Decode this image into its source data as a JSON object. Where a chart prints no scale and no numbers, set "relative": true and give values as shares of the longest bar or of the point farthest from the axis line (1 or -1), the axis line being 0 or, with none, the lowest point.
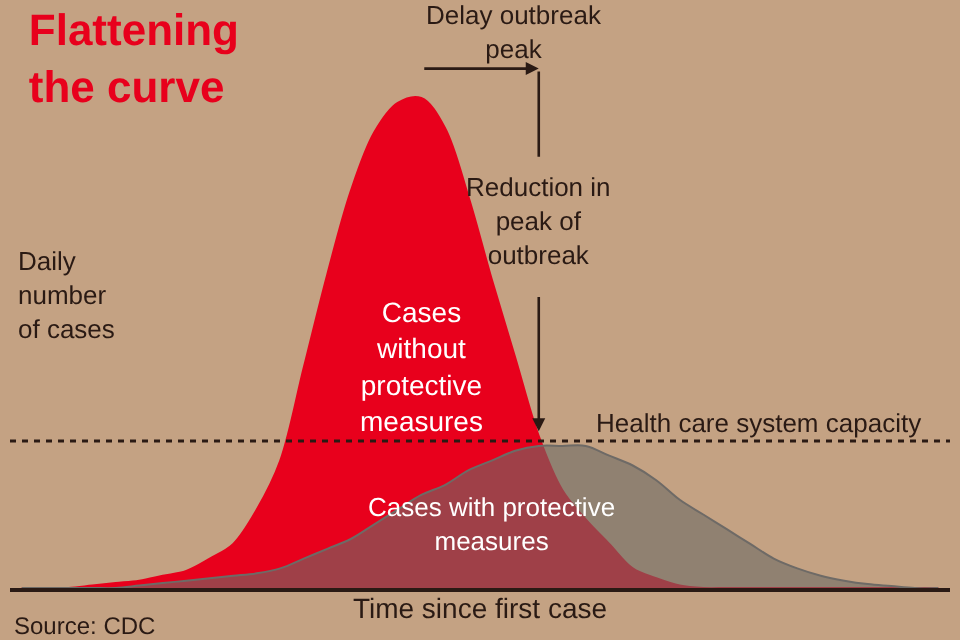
{
  "chart_data": {
    "type": "area",
    "title": "Flattening the curve",
    "xlabel": "Time since first case",
    "ylabel": "Daily number of cases",
    "relative": true,
    "legend": false,
    "categories": [
      null,
      null,
      null,
      null,
      null,
      null,
      null,
      null,
      null,
      null,
      null,
      null,
      null,
      null,
      null,
      null,
      null,
      null,
      null,
      null,
      null,
      null,
      null,
      null,
      null,
      null,
      null,
      null,
      null,
      null,
      null,
      null,
      null,
      null,
      null,
      null,
      null,
      null,
      null,
      null
    ],
    "series": [
      {
        "name": "Cases without protective measures",
        "color": "#e8001c",
        "values": [
          0,
          0,
          0,
          0.005,
          0.01,
          0.015,
          0.025,
          0.035,
          0.06,
          0.09,
          0.16,
          0.26,
          0.45,
          0.64,
          0.81,
          0.93,
          0.99,
          1,
          0.94,
          0.8,
          0.63,
          0.47,
          0.31,
          0.2,
          0.14,
          0.09,
          0.04,
          0.02,
          0.005,
          0,
          0,
          0,
          0,
          0,
          0,
          0,
          0,
          0,
          0,
          0
        ]
      },
      {
        "name": "Cases with protective measures",
        "color": "#6e6a66",
        "values": [
          0,
          0,
          0,
          0,
          0,
          0.005,
          0.01,
          0.015,
          0.02,
          0.025,
          0.03,
          0.04,
          0.06,
          0.08,
          0.1,
          0.13,
          0.16,
          0.19,
          0.21,
          0.24,
          0.26,
          0.28,
          0.29,
          0.29,
          0.29,
          0.27,
          0.25,
          0.22,
          0.18,
          0.15,
          0.12,
          0.09,
          0.06,
          0.04,
          0.025,
          0.015,
          0.008,
          0.004,
          0,
          0
        ]
      }
    ],
    "ref_lines": [
      {
        "axis": "y",
        "value": 0.3,
        "label": "Health care system capacity",
        "color": "#2a1a14",
        "line_style": "dotted"
      }
    ],
    "annotations": [
      "Delay outbreak peak",
      "Reduction in peak of outbreak",
      "Source: CDC"
    ]
  }
}
